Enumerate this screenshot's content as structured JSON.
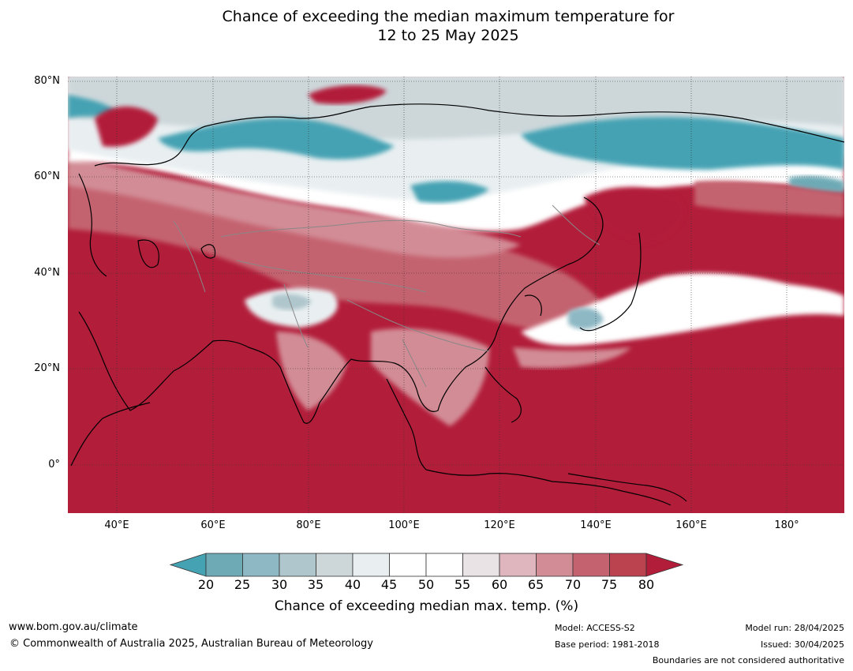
{
  "title": {
    "line1": "Chance of exceeding the median maximum temperature for",
    "line2": "12 to 25 May 2025"
  },
  "map": {
    "lat_labels": [
      "80°N",
      "60°N",
      "40°N",
      "20°N",
      "0°"
    ],
    "lon_labels": [
      "40°E",
      "60°E",
      "80°E",
      "100°E",
      "120°E",
      "140°E",
      "160°E",
      "180°"
    ],
    "extent": {
      "lon_min": 30,
      "lon_max": 192,
      "lat_min": -10,
      "lat_max": 80
    },
    "colors": {
      "hot_dominant": "#b21d3a",
      "cool_band": "#45a2b3",
      "neutral": "#ffffff"
    }
  },
  "colorbar": {
    "ticks": [
      "20",
      "25",
      "30",
      "35",
      "40",
      "45",
      "50",
      "55",
      "60",
      "65",
      "70",
      "75",
      "80"
    ],
    "colors": [
      "#45a2b3",
      "#6eaab6",
      "#8db8c4",
      "#afc6cc",
      "#cdd7da",
      "#e9eff1",
      "#ffffff",
      "#ffffff",
      "#e9e3e6",
      "#dfb6bd",
      "#d28c95",
      "#c4636f",
      "#ba434f",
      "#b21d3a"
    ],
    "label": "Chance of exceeding median max. temp. (%)"
  },
  "footer": {
    "website": "www.bom.gov.au/climate",
    "copyright": "© Commonwealth of Australia 2025, Australian Bureau of Meteorology",
    "model": "Model: ACCESS-S2",
    "base_period": "Base period: 1981-2018",
    "model_run": "Model run: 28/04/2025",
    "issued": "Issued: 30/04/2025",
    "disclaimer": "Boundaries are not considered authoritative"
  }
}
